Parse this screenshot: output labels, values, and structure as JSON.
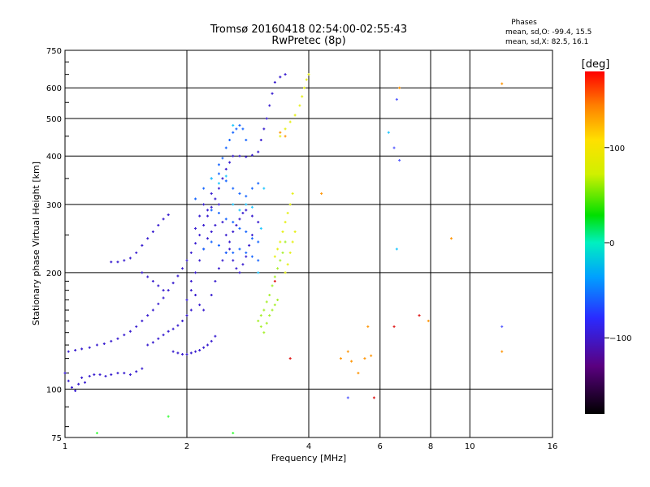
{
  "chart_data": {
    "type": "scatter",
    "title": "Tromsø 20160418 02:54:00-02:55:43",
    "subtitle": "RwPretec (8p)",
    "xlabel": "Frequency [MHz]",
    "ylabel": "Stationary phase Virtual Height [km]",
    "x_scale": "log",
    "y_scale": "log",
    "xlim": [
      1,
      16
    ],
    "ylim": [
      75,
      750
    ],
    "x_ticks": [
      1,
      2,
      4,
      6,
      8,
      10,
      16
    ],
    "y_ticks": [
      75,
      100,
      200,
      300,
      400,
      500,
      600,
      750
    ],
    "grid": true,
    "stats": {
      "heading": "Phases",
      "line_o": "mean, sd,O: -99.4, 15.5",
      "line_x": "mean, sd,X:  82.5, 16.1"
    },
    "colorbar": {
      "label": "[deg]",
      "min": -180,
      "max": 180,
      "ticks": [
        100,
        0,
        -100
      ]
    },
    "series": [
      {
        "color": "#3a1fd0",
        "points": [
          [
            1.0,
            110
          ],
          [
            1.02,
            105
          ],
          [
            1.04,
            101
          ],
          [
            1.06,
            99
          ],
          [
            1.08,
            103
          ],
          [
            1.1,
            107
          ],
          [
            1.12,
            104
          ],
          [
            1.15,
            108
          ],
          [
            1.18,
            109
          ],
          [
            1.22,
            109
          ],
          [
            1.26,
            108
          ],
          [
            1.3,
            109
          ],
          [
            1.35,
            110
          ],
          [
            1.4,
            110
          ],
          [
            1.45,
            109
          ],
          [
            1.5,
            111
          ],
          [
            1.55,
            113
          ],
          [
            1.02,
            125
          ],
          [
            1.06,
            126
          ],
          [
            1.1,
            127
          ],
          [
            1.15,
            128
          ],
          [
            1.2,
            130
          ],
          [
            1.25,
            131
          ],
          [
            1.3,
            133
          ],
          [
            1.35,
            135
          ],
          [
            1.4,
            138
          ],
          [
            1.45,
            141
          ],
          [
            1.5,
            145
          ],
          [
            1.55,
            150
          ],
          [
            1.6,
            155
          ],
          [
            1.65,
            160
          ],
          [
            1.7,
            166
          ],
          [
            1.75,
            172
          ],
          [
            1.8,
            180
          ],
          [
            1.85,
            188
          ],
          [
            1.9,
            196
          ],
          [
            1.95,
            205
          ],
          [
            2.0,
            215
          ],
          [
            2.05,
            225
          ],
          [
            2.1,
            238
          ],
          [
            2.15,
            250
          ],
          [
            2.2,
            265
          ],
          [
            2.25,
            280
          ],
          [
            2.3,
            295
          ],
          [
            2.35,
            310
          ],
          [
            2.4,
            330
          ],
          [
            2.45,
            350
          ],
          [
            2.5,
            370
          ],
          [
            2.55,
            385
          ],
          [
            2.6,
            400
          ],
          [
            2.7,
            400
          ],
          [
            2.8,
            398
          ],
          [
            2.9,
            402
          ],
          [
            3.0,
            410
          ],
          [
            3.05,
            440
          ],
          [
            3.1,
            470
          ],
          [
            3.15,
            500
          ],
          [
            3.2,
            540
          ],
          [
            3.25,
            580
          ],
          [
            3.3,
            620
          ],
          [
            3.4,
            640
          ],
          [
            3.5,
            650
          ],
          [
            1.3,
            213
          ],
          [
            1.35,
            213
          ],
          [
            1.4,
            215
          ],
          [
            1.45,
            218
          ],
          [
            1.5,
            225
          ],
          [
            1.55,
            235
          ],
          [
            1.6,
            245
          ],
          [
            1.65,
            255
          ],
          [
            1.7,
            265
          ],
          [
            1.75,
            275
          ],
          [
            1.8,
            282
          ],
          [
            1.55,
            200
          ],
          [
            1.6,
            195
          ],
          [
            1.65,
            190
          ],
          [
            1.7,
            185
          ],
          [
            1.75,
            180
          ],
          [
            1.6,
            130
          ],
          [
            1.65,
            132
          ],
          [
            1.7,
            135
          ],
          [
            1.75,
            138
          ],
          [
            1.8,
            141
          ],
          [
            1.85,
            143
          ],
          [
            1.9,
            146
          ],
          [
            1.95,
            150
          ],
          [
            2.0,
            155
          ],
          [
            2.05,
            160
          ],
          [
            1.85,
            125
          ],
          [
            1.9,
            124
          ],
          [
            1.95,
            123
          ],
          [
            2.0,
            123
          ],
          [
            2.05,
            124
          ],
          [
            2.1,
            125
          ],
          [
            2.15,
            126
          ],
          [
            2.2,
            128
          ],
          [
            2.25,
            130
          ],
          [
            2.3,
            133
          ],
          [
            2.35,
            137
          ],
          [
            2.0,
            170
          ],
          [
            2.05,
            180
          ],
          [
            2.1,
            200
          ],
          [
            2.15,
            215
          ],
          [
            2.2,
            230
          ],
          [
            2.25,
            245
          ],
          [
            2.3,
            255
          ],
          [
            2.35,
            265
          ],
          [
            2.1,
            260
          ],
          [
            2.15,
            280
          ],
          [
            2.2,
            300
          ],
          [
            2.25,
            290
          ],
          [
            2.3,
            320
          ],
          [
            2.4,
            300
          ],
          [
            2.45,
            270
          ],
          [
            2.5,
            250
          ],
          [
            2.55,
            230
          ],
          [
            2.6,
            215
          ],
          [
            2.65,
            205
          ],
          [
            2.7,
            200
          ],
          [
            2.75,
            210
          ],
          [
            2.8,
            220
          ],
          [
            2.85,
            235
          ],
          [
            2.9,
            250
          ],
          [
            2.05,
            190
          ],
          [
            2.1,
            175
          ],
          [
            2.15,
            165
          ],
          [
            2.2,
            160
          ],
          [
            2.3,
            175
          ],
          [
            2.35,
            190
          ],
          [
            2.4,
            205
          ],
          [
            2.45,
            215
          ],
          [
            2.5,
            225
          ],
          [
            2.55,
            240
          ],
          [
            2.6,
            255
          ],
          [
            2.65,
            265
          ],
          [
            2.7,
            275
          ],
          [
            2.75,
            285
          ],
          [
            2.8,
            290
          ],
          [
            2.9,
            280
          ],
          [
            3.0,
            270
          ]
        ]
      },
      {
        "color": "#1a68ff",
        "points": [
          [
            2.1,
            310
          ],
          [
            2.2,
            330
          ],
          [
            2.3,
            350
          ],
          [
            2.4,
            360
          ],
          [
            2.5,
            345
          ],
          [
            2.6,
            330
          ],
          [
            2.7,
            320
          ],
          [
            2.8,
            315
          ],
          [
            2.9,
            330
          ],
          [
            3.0,
            340
          ],
          [
            2.3,
            290
          ],
          [
            2.4,
            285
          ],
          [
            2.5,
            275
          ],
          [
            2.6,
            270
          ],
          [
            2.7,
            260
          ],
          [
            2.8,
            255
          ],
          [
            2.9,
            245
          ],
          [
            3.0,
            240
          ],
          [
            2.5,
            420
          ],
          [
            2.55,
            440
          ],
          [
            2.6,
            460
          ],
          [
            2.65,
            470
          ],
          [
            2.7,
            480
          ],
          [
            2.75,
            470
          ],
          [
            2.8,
            440
          ],
          [
            2.4,
            380
          ],
          [
            2.45,
            395
          ],
          [
            2.2,
            230
          ],
          [
            2.3,
            240
          ],
          [
            2.4,
            235
          ],
          [
            2.5,
            225
          ],
          [
            2.6,
            225
          ],
          [
            2.7,
            230
          ],
          [
            2.8,
            225
          ],
          [
            2.9,
            220
          ],
          [
            3.0,
            215
          ]
        ]
      },
      {
        "color": "#23c8ff",
        "points": [
          [
            2.3,
            350
          ],
          [
            2.4,
            340
          ],
          [
            2.5,
            355
          ],
          [
            2.6,
            300
          ],
          [
            2.7,
            290
          ],
          [
            2.8,
            300
          ],
          [
            2.9,
            295
          ],
          [
            3.0,
            200
          ],
          [
            3.05,
            260
          ],
          [
            3.1,
            330
          ],
          [
            2.6,
            480
          ],
          [
            6.3,
            460
          ],
          [
            6.6,
            230
          ]
        ]
      },
      {
        "color": "#a8f030",
        "points": [
          [
            3.0,
            150
          ],
          [
            3.05,
            145
          ],
          [
            3.1,
            140
          ],
          [
            3.15,
            148
          ],
          [
            3.2,
            155
          ],
          [
            3.25,
            160
          ],
          [
            3.3,
            165
          ],
          [
            3.35,
            170
          ],
          [
            3.05,
            155
          ],
          [
            3.1,
            160
          ],
          [
            3.15,
            168
          ],
          [
            3.2,
            175
          ],
          [
            3.25,
            185
          ],
          [
            3.3,
            195
          ],
          [
            3.35,
            205
          ],
          [
            3.4,
            215
          ],
          [
            3.45,
            225
          ],
          [
            3.5,
            240
          ]
        ]
      },
      {
        "color": "#e6f01a",
        "points": [
          [
            3.3,
            220
          ],
          [
            3.35,
            230
          ],
          [
            3.4,
            240
          ],
          [
            3.45,
            255
          ],
          [
            3.5,
            270
          ],
          [
            3.55,
            285
          ],
          [
            3.6,
            300
          ],
          [
            3.65,
            320
          ],
          [
            3.5,
            200
          ],
          [
            3.55,
            210
          ],
          [
            3.6,
            225
          ],
          [
            3.65,
            240
          ],
          [
            3.7,
            255
          ],
          [
            3.4,
            450
          ],
          [
            3.5,
            470
          ],
          [
            3.6,
            490
          ],
          [
            3.7,
            510
          ],
          [
            3.8,
            540
          ],
          [
            3.85,
            570
          ],
          [
            3.9,
            600
          ],
          [
            3.95,
            630
          ],
          [
            4.0,
            650
          ]
        ]
      },
      {
        "color": "#ff9a10",
        "points": [
          [
            3.4,
            460
          ],
          [
            3.5,
            450
          ],
          [
            4.3,
            320
          ],
          [
            4.8,
            120
          ],
          [
            5.0,
            125
          ],
          [
            5.1,
            118
          ],
          [
            5.5,
            120
          ],
          [
            5.7,
            122
          ],
          [
            5.3,
            110
          ],
          [
            5.6,
            145
          ],
          [
            6.7,
            600
          ],
          [
            7.9,
            150
          ],
          [
            9.0,
            245
          ],
          [
            12.0,
            125
          ],
          [
            12.0,
            615
          ]
        ]
      },
      {
        "color": "#e02020",
        "points": [
          [
            3.3,
            190
          ],
          [
            3.6,
            120
          ],
          [
            5.8,
            95
          ],
          [
            6.5,
            145
          ],
          [
            7.5,
            155
          ]
        ]
      },
      {
        "color": "#5a60ff",
        "points": [
          [
            5.0,
            95
          ],
          [
            6.6,
            560
          ],
          [
            6.5,
            420
          ],
          [
            6.7,
            390
          ],
          [
            12.0,
            145
          ]
        ]
      },
      {
        "color": "#40ff40",
        "points": [
          [
            1.2,
            77
          ],
          [
            2.6,
            77
          ],
          [
            1.8,
            85
          ]
        ]
      }
    ]
  }
}
